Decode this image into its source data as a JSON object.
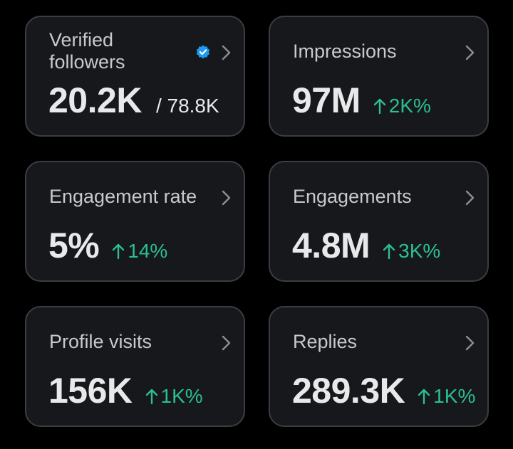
{
  "colors": {
    "background": "#000000",
    "card": "#16181c",
    "card_border": "#3a3d42",
    "label": "#c7c9cd",
    "value": "#e7e9ea",
    "delta_up": "#2bbf8f",
    "verified_badge": "#1d9bf0"
  },
  "icons": {
    "chevron": "chevron-right-icon",
    "arrow": "arrow-up-icon",
    "badge": "verified-badge-icon"
  },
  "metrics": [
    {
      "label": "Verified followers",
      "value": "20.2K",
      "sub": "/ 78.8K"
    },
    {
      "label": "Impressions",
      "value": "97M",
      "delta": "2K%"
    },
    {
      "label": "Engagement rate",
      "value": "5%",
      "delta": "14%"
    },
    {
      "label": "Engagements",
      "value": "4.8M",
      "delta": "3K%"
    },
    {
      "label": "Profile visits",
      "value": "156K",
      "delta": "1K%"
    },
    {
      "label": "Replies",
      "value": "289.3K",
      "delta": "1K%"
    }
  ]
}
